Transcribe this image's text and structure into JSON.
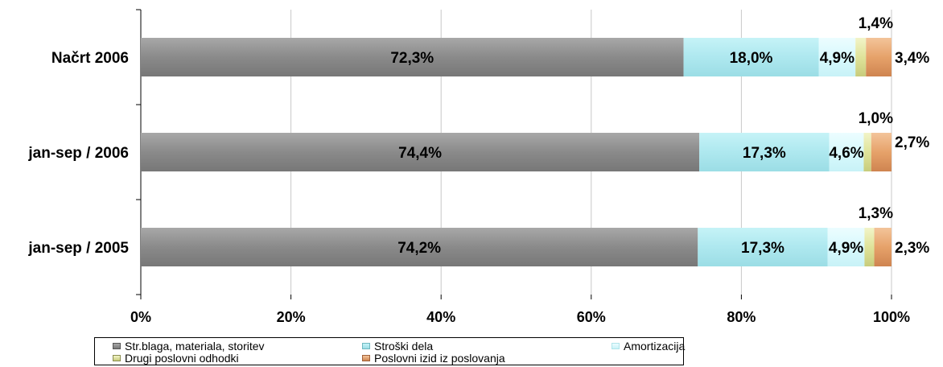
{
  "chart_data": {
    "type": "bar",
    "orientation": "horizontal",
    "stacked": "100%",
    "categories": [
      "Načrt 2006",
      "jan-sep / 2006",
      "jan-sep / 2005"
    ],
    "series": [
      {
        "name": "Str.blaga, materiala, storitev",
        "values": [
          72.3,
          74.4,
          74.2
        ],
        "labels": [
          "72,3%",
          "74,4%",
          "74,2%"
        ],
        "color": "#8c8c8c"
      },
      {
        "name": "Stroški dela",
        "values": [
          18.0,
          17.3,
          17.3
        ],
        "labels": [
          "18,0%",
          "17,3%",
          "17,3%"
        ],
        "color": "#aeeaf0"
      },
      {
        "name": "Amortizacija",
        "values": [
          4.9,
          4.6,
          4.9
        ],
        "labels": [
          "4,9%",
          "4,6%",
          "4,9%"
        ],
        "color": "#dcfbff"
      },
      {
        "name": "Drugi poslovni odhodki",
        "values": [
          1.4,
          1.0,
          1.3
        ],
        "labels": [
          "1,4%",
          "1,0%",
          "1,3%"
        ],
        "color": "#e8ebb0"
      },
      {
        "name": "Poslovni izid iz poslovanja",
        "values": [
          3.4,
          2.7,
          2.3
        ],
        "labels": [
          "3,4%",
          "2,7%",
          "2,3%"
        ],
        "color": "#e6a26a"
      }
    ],
    "x_ticks": [
      "0%",
      "20%",
      "40%",
      "60%",
      "80%",
      "100%"
    ],
    "xlim": [
      0,
      100
    ],
    "grid": true,
    "legend_position": "bottom"
  },
  "legend": {
    "items": [
      "Str.blaga, materiala, storitev",
      "Stroški dela",
      "Amortizacija",
      "Drugi poslovni odhodki",
      "Poslovni izid iz poslovanja"
    ]
  }
}
